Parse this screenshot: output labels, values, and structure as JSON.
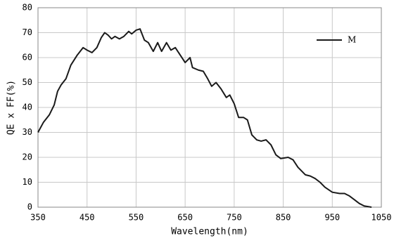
{
  "chart_data": {
    "type": "line",
    "xlabel": "Wavelength(nm)",
    "ylabel": "QE x FF(%)",
    "x": [
      350,
      361,
      373,
      383,
      390,
      397,
      407,
      417,
      430,
      442,
      450,
      460,
      470,
      479,
      486,
      493,
      500,
      507,
      516,
      525,
      535,
      541,
      550,
      558,
      567,
      575,
      585,
      594,
      602,
      612,
      621,
      630,
      640,
      650,
      660,
      665,
      677,
      687,
      696,
      704,
      713,
      723,
      734,
      741,
      750,
      759,
      769,
      777,
      786,
      796,
      805,
      815,
      825,
      835,
      845,
      860,
      870,
      880,
      895,
      905,
      915,
      925,
      935,
      950,
      965,
      975,
      985,
      995,
      1005,
      1015,
      1030
    ],
    "series": [
      {
        "name": "M",
        "color": "#1a1a1a",
        "values": [
          30,
          34,
          37,
          41,
          46.5,
          49,
          51.5,
          57,
          61,
          64,
          63,
          62,
          64,
          68,
          70,
          69,
          67.5,
          68.5,
          67.5,
          68.5,
          70.5,
          69.5,
          71,
          71.5,
          67,
          66,
          62.5,
          66,
          62.5,
          66,
          63,
          64,
          61,
          58,
          60,
          56,
          55,
          54.5,
          51.5,
          48.5,
          50,
          47.5,
          44,
          45,
          41.5,
          36,
          36,
          35,
          29,
          27,
          26.5,
          27,
          25,
          21,
          19.5,
          20,
          19,
          16,
          13,
          12.5,
          11.5,
          10,
          8,
          6,
          5.5,
          5.5,
          4.5,
          3,
          1.5,
          0.5,
          0
        ]
      }
    ],
    "xlim": [
      350,
      1050
    ],
    "xticks": [
      350,
      450,
      550,
      650,
      750,
      850,
      950,
      1050
    ],
    "ylim": [
      0,
      80
    ],
    "yticks": [
      0,
      10,
      20,
      30,
      40,
      50,
      60,
      70,
      80
    ],
    "grid": true,
    "legend": "upper right"
  }
}
